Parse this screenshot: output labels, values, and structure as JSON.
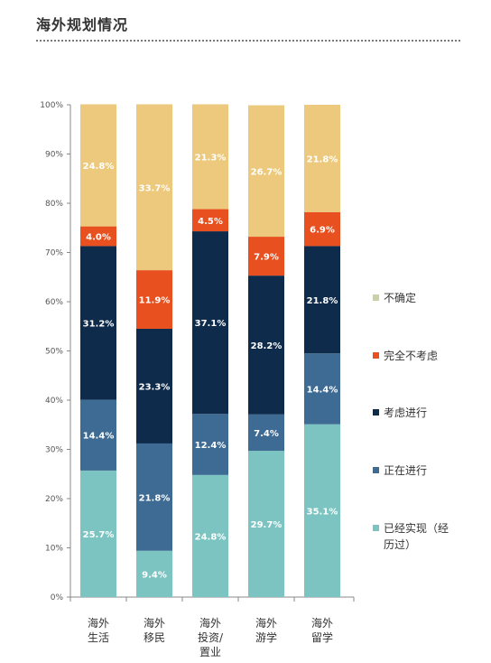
{
  "header": {
    "title": "海外规划情况"
  },
  "chart_data": {
    "type": "bar",
    "stacked": true,
    "title": "海外规划情况",
    "categories": [
      [
        "海外",
        "生活"
      ],
      [
        "海外",
        "移民"
      ],
      [
        "海外",
        "投资/",
        "置业"
      ],
      [
        "海外",
        "游学"
      ],
      [
        "海外",
        "留学"
      ]
    ],
    "ylim": [
      0,
      100
    ],
    "yticks": [
      "0%",
      "10%",
      "20%",
      "30%",
      "40%",
      "50%",
      "60%",
      "70%",
      "80%",
      "90%",
      "100%"
    ],
    "series": [
      {
        "name": "已经实现（经历过）",
        "color": "#7cc4c1",
        "label_color": "#ffffff",
        "values": [
          25.7,
          9.4,
          24.8,
          29.7,
          35.1
        ],
        "labels": [
          "25.7%",
          "9.4%",
          "24.8%",
          "29.7%",
          "35.1%"
        ]
      },
      {
        "name": "正在进行",
        "color": "#3e6b93",
        "label_color": "#ffffff",
        "values": [
          14.4,
          21.8,
          12.4,
          7.4,
          14.4
        ],
        "labels": [
          "14.4%",
          "21.8%",
          "12.4%",
          "7.4%",
          "14.4%"
        ]
      },
      {
        "name": "考虑进行",
        "color": "#0f2b4b",
        "label_color": "#ffffff",
        "values": [
          31.2,
          23.3,
          37.1,
          28.2,
          21.8
        ],
        "labels": [
          "31.2%",
          "23.3%",
          "37.1%",
          "28.2%",
          "21.8%"
        ]
      },
      {
        "name": "完全不考虑",
        "color": "#e8501f",
        "label_color": "#ffffff",
        "values": [
          4.0,
          11.9,
          4.5,
          7.9,
          6.9
        ],
        "labels": [
          "4.0%",
          "11.9%",
          "4.5%",
          "7.9%",
          "6.9%"
        ]
      },
      {
        "name": "不确定",
        "color": "#ecc97c",
        "label_color": "#ffffff",
        "values": [
          24.8,
          33.7,
          21.3,
          26.7,
          21.8
        ],
        "labels": [
          "24.8%",
          "33.7%",
          "21.3%",
          "26.7%",
          "21.8%"
        ]
      }
    ],
    "legend": {
      "position": "right",
      "items": [
        {
          "label": "不确定",
          "color": "#c9d2a4"
        },
        {
          "label": "完全不考虑",
          "color": "#e8501f"
        },
        {
          "label": "考虑进行",
          "color": "#0f2b4b"
        },
        {
          "label": "正在进行",
          "color": "#3e6b93"
        },
        {
          "label": "已经实现（经历过）",
          "color": "#7cc4c1",
          "lines": [
            "已经实现（经",
            "历过）"
          ]
        }
      ]
    },
    "grid": false
  }
}
